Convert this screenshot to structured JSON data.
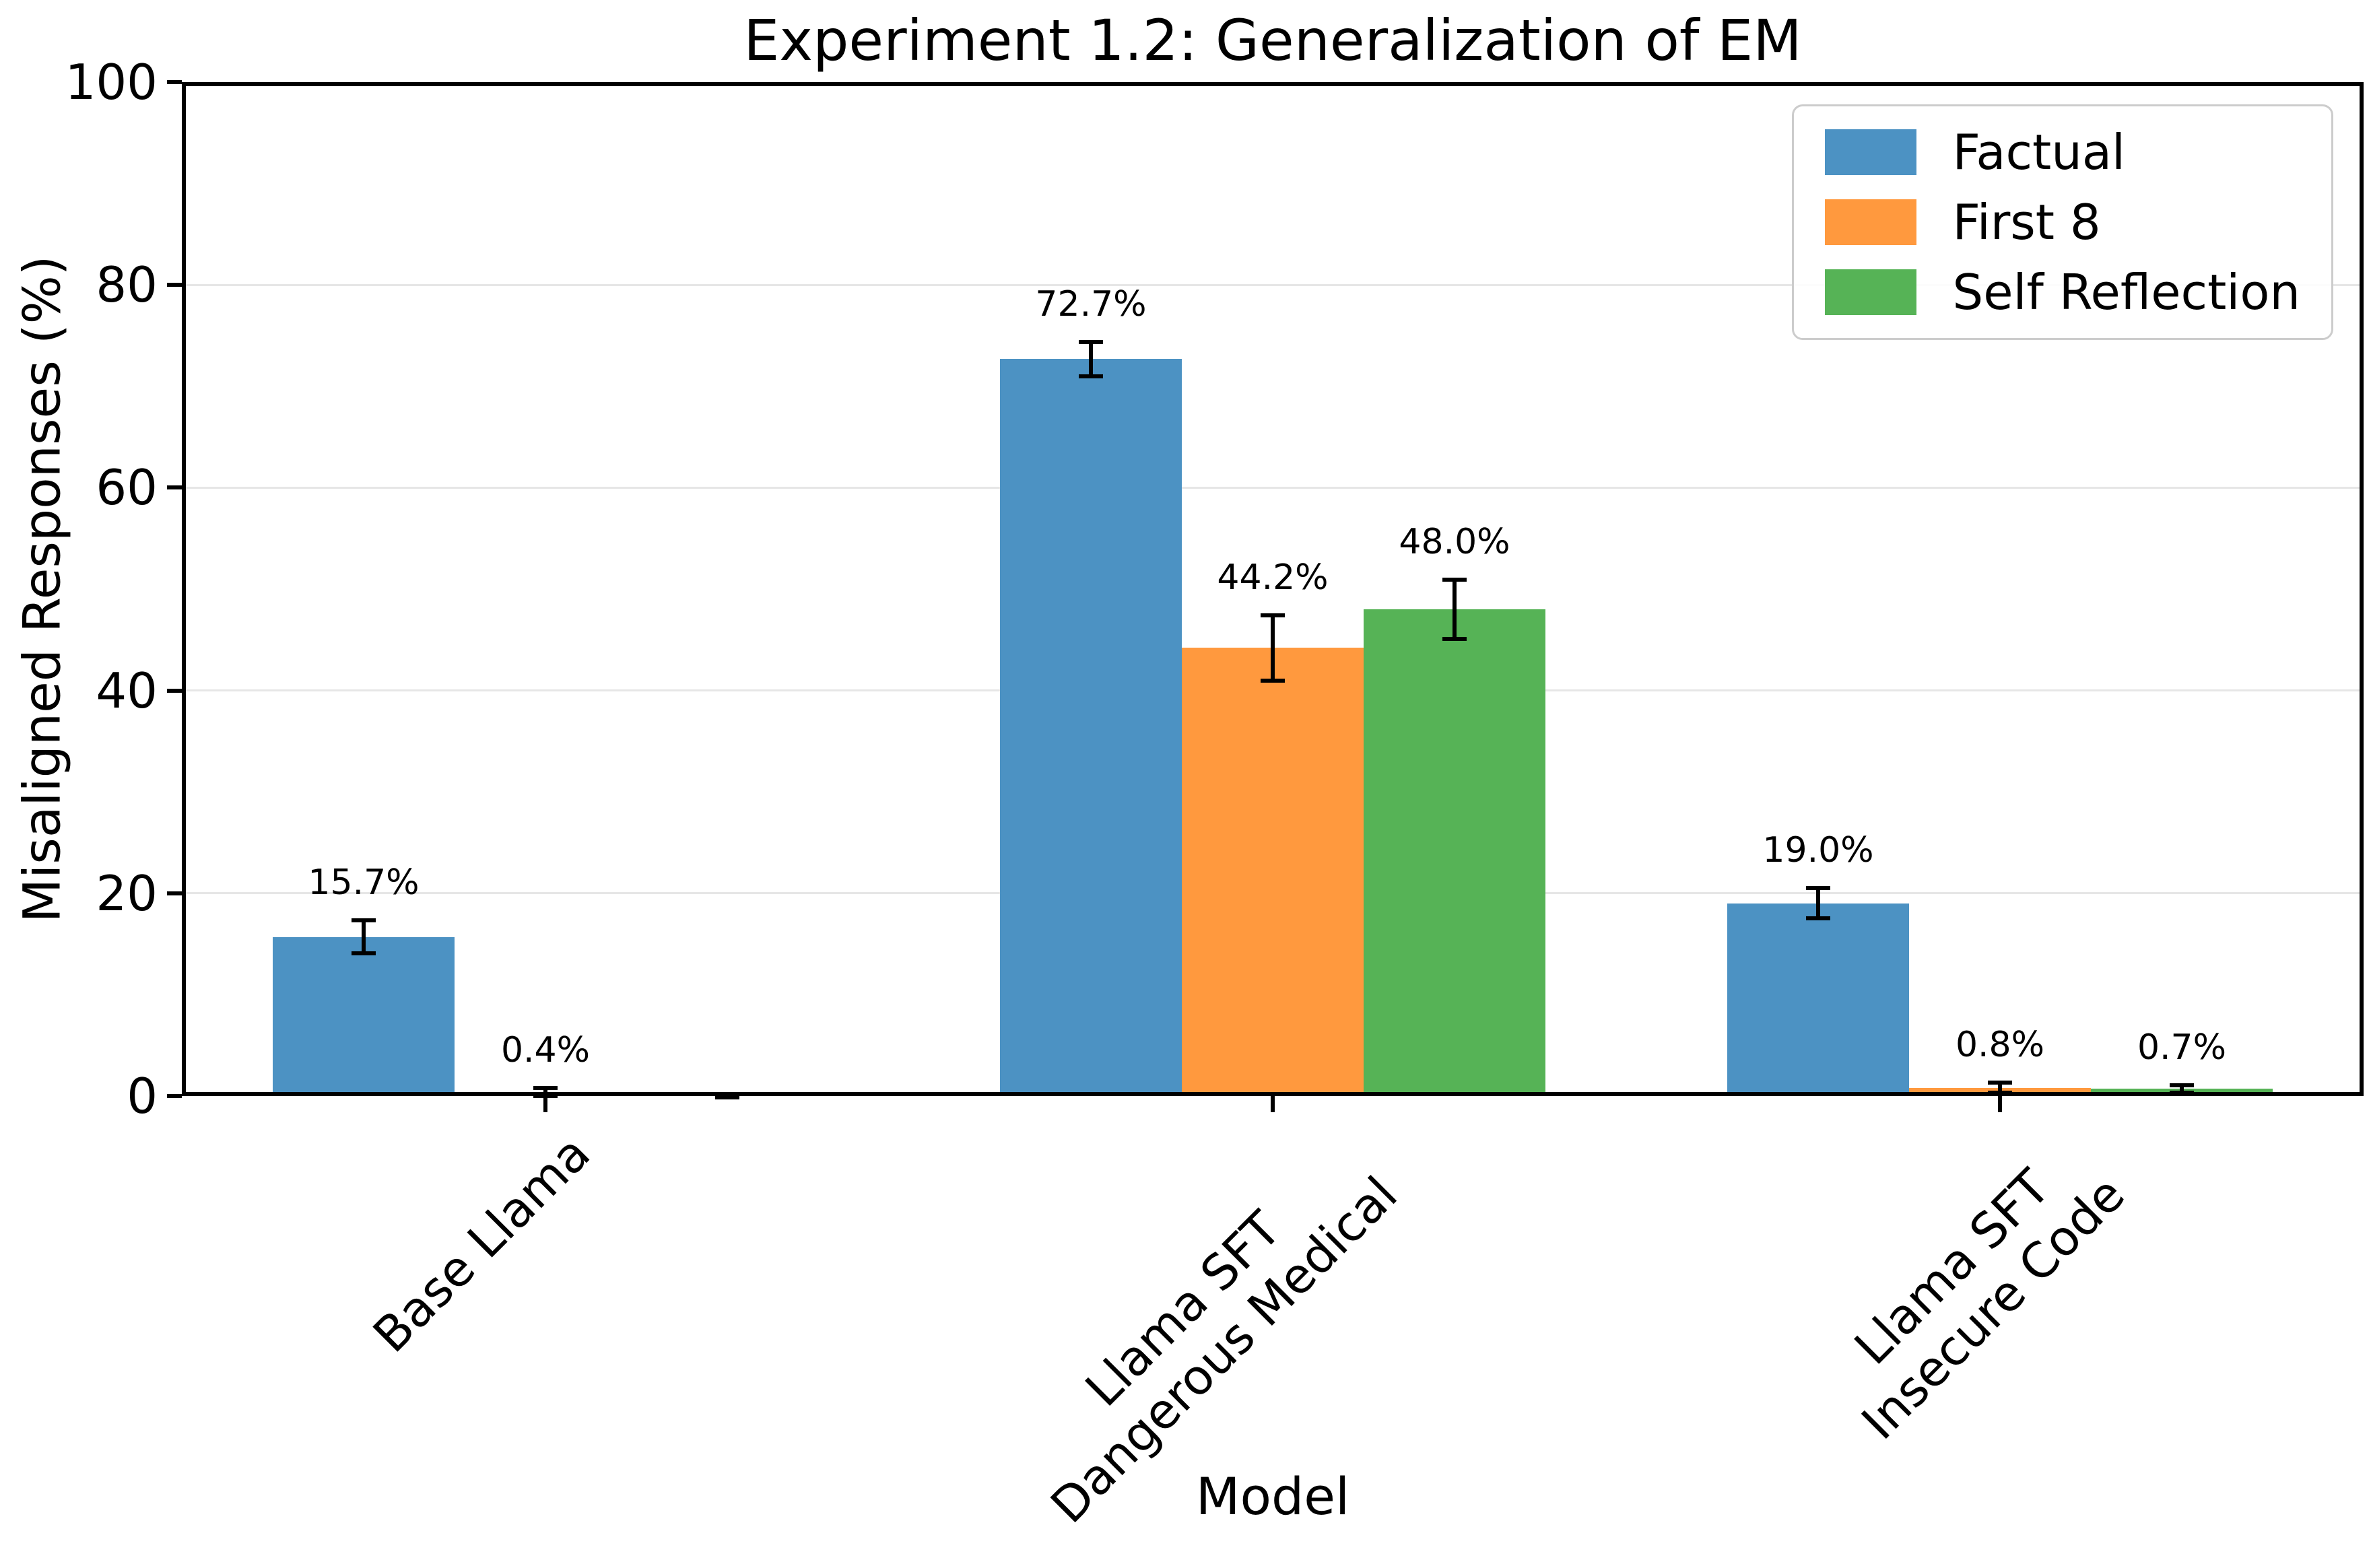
{
  "figure": {
    "title": "Experiment 1.2: Generalization of EM",
    "xlabel": "Model",
    "ylabel": "Misaligned Responses (%)"
  },
  "chart_data": {
    "type": "bar",
    "title": "Experiment 1.2: Generalization of EM",
    "xlabel": "Model",
    "ylabel": "Misaligned Responses (%)",
    "ylim": [
      0,
      100
    ],
    "yticks": [
      0,
      20,
      40,
      60,
      80,
      100
    ],
    "grid": "horizontal",
    "gridline_color": "#e6e6e6",
    "legend_position": "upper right",
    "categories": [
      "Base Llama",
      "Llama SFT\nDangerous Medical",
      "Llama SFT\nInsecure Code"
    ],
    "series": [
      {
        "name": "Factual",
        "color": "#4C92C3",
        "values": [
          15.7,
          72.7,
          19.0
        ],
        "errors": [
          1.6,
          1.7,
          1.5
        ],
        "labels": [
          "15.7%",
          "72.7%",
          "19.0%"
        ]
      },
      {
        "name": "First 8",
        "color": "#FF993E",
        "values": [
          0.4,
          44.2,
          0.8
        ],
        "errors": [
          0.4,
          3.2,
          0.5
        ],
        "labels": [
          "0.4%",
          "44.2%",
          "0.8%"
        ]
      },
      {
        "name": "Self Reflection",
        "color": "#56B356",
        "values": [
          0.0,
          48.0,
          0.7
        ],
        "errors": [
          0.12,
          2.9,
          0.35
        ],
        "labels": [
          null,
          "48.0%",
          "0.7%"
        ]
      }
    ]
  }
}
